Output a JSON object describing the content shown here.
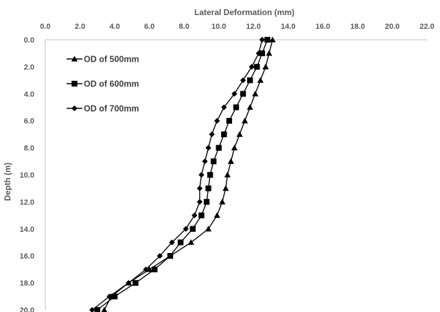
{
  "chart_data": {
    "type": "line",
    "xlabel": "Lateral Deformation (mm)",
    "ylabel": "Depth (m)",
    "xlim": [
      0,
      22
    ],
    "ylim": [
      0,
      20
    ],
    "y_inverted": true,
    "x_axis_position": "top",
    "x_ticks": [
      "0.0",
      "2.0",
      "4.0",
      "6.0",
      "8.0",
      "10.0",
      "12.0",
      "14.0",
      "16.0",
      "18.0",
      "20.0",
      "22.0"
    ],
    "y_ticks": [
      "0.0",
      "2.0",
      "4.0",
      "6.0",
      "8.0",
      "10.0",
      "12.0",
      "14.0",
      "16.0",
      "18.0",
      "20.0"
    ],
    "grid": false,
    "legend_position": "top-left",
    "series": [
      {
        "name": "OD of 500mm",
        "marker": "triangle",
        "color": "#000000",
        "points": [
          [
            13.1,
            0
          ],
          [
            12.9,
            1
          ],
          [
            12.7,
            2
          ],
          [
            12.4,
            3
          ],
          [
            12.1,
            4
          ],
          [
            11.8,
            5
          ],
          [
            11.5,
            6
          ],
          [
            11.2,
            7
          ],
          [
            10.9,
            8
          ],
          [
            10.7,
            9
          ],
          [
            10.5,
            10
          ],
          [
            10.4,
            11
          ],
          [
            10.2,
            12
          ],
          [
            9.9,
            13
          ],
          [
            9.4,
            14
          ],
          [
            8.4,
            15
          ],
          [
            7.2,
            16
          ],
          [
            6.0,
            17
          ],
          [
            4.8,
            18
          ],
          [
            3.8,
            19
          ],
          [
            3.4,
            20
          ]
        ]
      },
      {
        "name": "OD of 600mm",
        "marker": "square",
        "color": "#000000",
        "points": [
          [
            12.8,
            0
          ],
          [
            12.5,
            1
          ],
          [
            12.2,
            2
          ],
          [
            11.8,
            3
          ],
          [
            11.4,
            4
          ],
          [
            11.0,
            5
          ],
          [
            10.6,
            6
          ],
          [
            10.3,
            7
          ],
          [
            10.0,
            8
          ],
          [
            9.7,
            9
          ],
          [
            9.5,
            10
          ],
          [
            9.4,
            11
          ],
          [
            9.3,
            12
          ],
          [
            9.0,
            13
          ],
          [
            8.5,
            14
          ],
          [
            7.8,
            15
          ],
          [
            7.2,
            16
          ],
          [
            6.3,
            17
          ],
          [
            5.2,
            18
          ],
          [
            4.0,
            19
          ],
          [
            3.0,
            20
          ]
        ]
      },
      {
        "name": "OD of 700mm",
        "marker": "diamond",
        "color": "#000000",
        "points": [
          [
            12.5,
            0
          ],
          [
            12.3,
            1
          ],
          [
            11.9,
            2
          ],
          [
            11.4,
            3
          ],
          [
            10.9,
            4
          ],
          [
            10.3,
            5
          ],
          [
            9.9,
            6
          ],
          [
            9.6,
            7
          ],
          [
            9.4,
            8
          ],
          [
            9.2,
            9
          ],
          [
            9.0,
            10
          ],
          [
            8.9,
            11
          ],
          [
            8.9,
            12
          ],
          [
            8.6,
            13
          ],
          [
            8.1,
            14
          ],
          [
            7.3,
            15
          ],
          [
            6.6,
            16
          ],
          [
            5.8,
            17
          ],
          [
            4.8,
            18
          ],
          [
            3.7,
            19
          ],
          [
            2.7,
            20
          ]
        ]
      }
    ]
  }
}
